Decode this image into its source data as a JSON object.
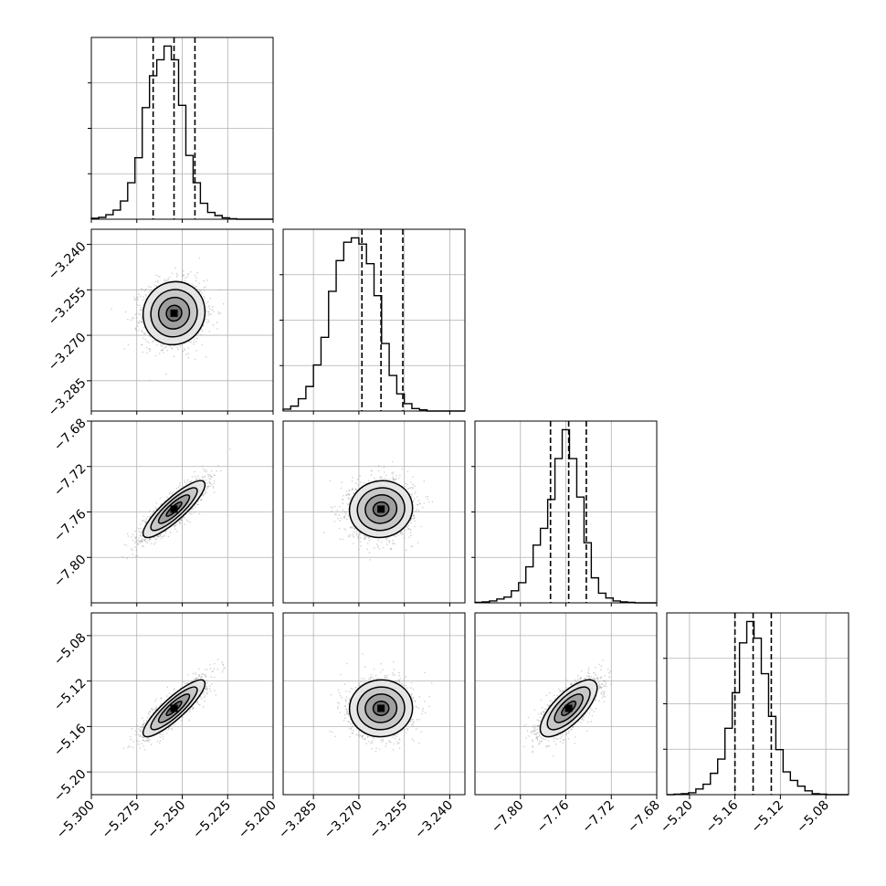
{
  "chart_data": {
    "type": "corner",
    "dimensions": 4,
    "parameters": [
      {
        "index": 0,
        "range": [
          -5.3,
          -5.2
        ],
        "ticks": [
          -5.3,
          -5.275,
          -5.25,
          -5.225,
          -5.2
        ],
        "tick_labels": [
          "−5.300",
          "−5.275",
          "−5.250",
          "−5.225",
          "−5.200"
        ],
        "quantiles": [
          -5.266,
          -5.2545,
          -5.243
        ],
        "histogram": {
          "bins": [
            -5.3,
            -5.296,
            -5.292,
            -5.288,
            -5.284,
            -5.28,
            -5.276,
            -5.272,
            -5.268,
            -5.264,
            -5.26,
            -5.256,
            -5.252,
            -5.248,
            -5.244,
            -5.24,
            -5.236,
            -5.232,
            -5.228,
            -5.224,
            -5.22,
            -5.216,
            -5.212,
            -5.208,
            -5.204,
            -5.2
          ],
          "counts": [
            2,
            4,
            10,
            20,
            40,
            80,
            135,
            245,
            315,
            350,
            380,
            350,
            250,
            140,
            80,
            35,
            15,
            8,
            3,
            1,
            0,
            0,
            0,
            0,
            0
          ]
        }
      },
      {
        "index": 1,
        "range": [
          -3.295,
          -3.235
        ],
        "ticks": [
          -3.285,
          -3.27,
          -3.255,
          -3.24
        ],
        "tick_labels": [
          "−3.285",
          "−3.270",
          "−3.255",
          "−3.240"
        ],
        "quantiles": [
          -3.269,
          -3.2627,
          -3.2555
        ],
        "histogram": {
          "bins": [
            -3.295,
            -3.2925,
            -3.29,
            -3.2875,
            -3.285,
            -3.2825,
            -3.28,
            -3.2775,
            -3.275,
            -3.2725,
            -3.27,
            -3.2675,
            -3.265,
            -3.2625,
            -3.26,
            -3.2575,
            -3.255,
            -3.2525,
            -3.25,
            -3.2475,
            -3.245,
            -3.2425,
            -3.24,
            -3.2375,
            -3.235
          ],
          "counts": [
            3,
            8,
            20,
            40,
            75,
            120,
            195,
            245,
            275,
            282,
            272,
            240,
            188,
            110,
            58,
            28,
            12,
            4,
            2,
            0,
            0,
            0,
            0,
            0
          ]
        }
      },
      {
        "index": 2,
        "range": [
          -7.84,
          -7.68
        ],
        "ticks": [
          -7.8,
          -7.76,
          -7.72,
          -7.68
        ],
        "tick_labels": [
          "−7.80",
          "−7.76",
          "−7.72",
          "−7.68"
        ],
        "quantiles": [
          -7.7735,
          -7.7575,
          -7.742
        ],
        "histogram": {
          "bins": [
            -7.84,
            -7.8336,
            -7.8272,
            -7.8208,
            -7.8144,
            -7.808,
            -7.8016,
            -7.7952,
            -7.7888,
            -7.7824,
            -7.776,
            -7.7696,
            -7.7632,
            -7.7568,
            -7.7504,
            -7.744,
            -7.7376,
            -7.7312,
            -7.7248,
            -7.7184,
            -7.712,
            -7.7056,
            -7.6992,
            -7.6928,
            -7.6864,
            -7.68
          ],
          "counts": [
            1,
            2,
            4,
            8,
            12,
            25,
            42,
            75,
            120,
            155,
            215,
            300,
            360,
            300,
            220,
            125,
            52,
            20,
            10,
            4,
            2,
            1,
            0,
            0,
            0
          ]
        }
      },
      {
        "index": 3,
        "range": [
          -5.22,
          -5.06
        ],
        "ticks": [
          -5.2,
          -5.16,
          -5.12,
          -5.08
        ],
        "tick_labels": [
          "−5.20",
          "−5.16",
          "−5.12",
          "−5.08"
        ],
        "quantiles": [
          -5.16,
          -5.144,
          -5.128
        ],
        "histogram": {
          "bins": [
            -5.22,
            -5.2136,
            -5.2072,
            -5.2008,
            -5.1944,
            -5.188,
            -5.1816,
            -5.1752,
            -5.1688,
            -5.1624,
            -5.156,
            -5.1496,
            -5.1432,
            -5.1368,
            -5.1304,
            -5.124,
            -5.1176,
            -5.1112,
            -5.1048,
            -5.0984,
            -5.092,
            -5.0856,
            -5.0792,
            -5.0728,
            -5.0664,
            -5.06
          ],
          "counts": [
            0,
            1,
            2,
            4,
            12,
            22,
            45,
            75,
            140,
            215,
            320,
            365,
            330,
            255,
            165,
            95,
            48,
            30,
            18,
            8,
            2,
            1,
            0,
            0,
            0
          ]
        }
      }
    ],
    "joint": [
      {
        "x": 0,
        "y": 1,
        "center": [
          -5.2545,
          -3.2627
        ],
        "sigma": [
          0.0085,
          0.0052
        ],
        "correlation": 0.05
      },
      {
        "x": 0,
        "y": 2,
        "center": [
          -5.2545,
          -7.7575
        ],
        "sigma": [
          0.0085,
          0.0125
        ],
        "correlation": 0.86
      },
      {
        "x": 1,
        "y": 2,
        "center": [
          -3.2627,
          -7.7575
        ],
        "sigma": [
          0.0052,
          0.0125
        ],
        "correlation": 0.05
      },
      {
        "x": 0,
        "y": 3,
        "center": [
          -5.2545,
          -5.144
        ],
        "sigma": [
          0.0085,
          0.0125
        ],
        "correlation": 0.87
      },
      {
        "x": 1,
        "y": 3,
        "center": [
          -3.2627,
          -5.144
        ],
        "sigma": [
          0.0052,
          0.0125
        ],
        "correlation": 0.02
      },
      {
        "x": 2,
        "y": 3,
        "center": [
          -7.7575,
          -5.144
        ],
        "sigma": [
          0.0125,
          0.0125
        ],
        "correlation": 0.72
      }
    ],
    "contour_levels_sigma": [
      0.5,
      1.0,
      1.5,
      2.0
    ],
    "grid": true,
    "colors": {
      "lines": "#000000",
      "grid": "#b0b0b0",
      "points": "#9a9a9a"
    }
  }
}
